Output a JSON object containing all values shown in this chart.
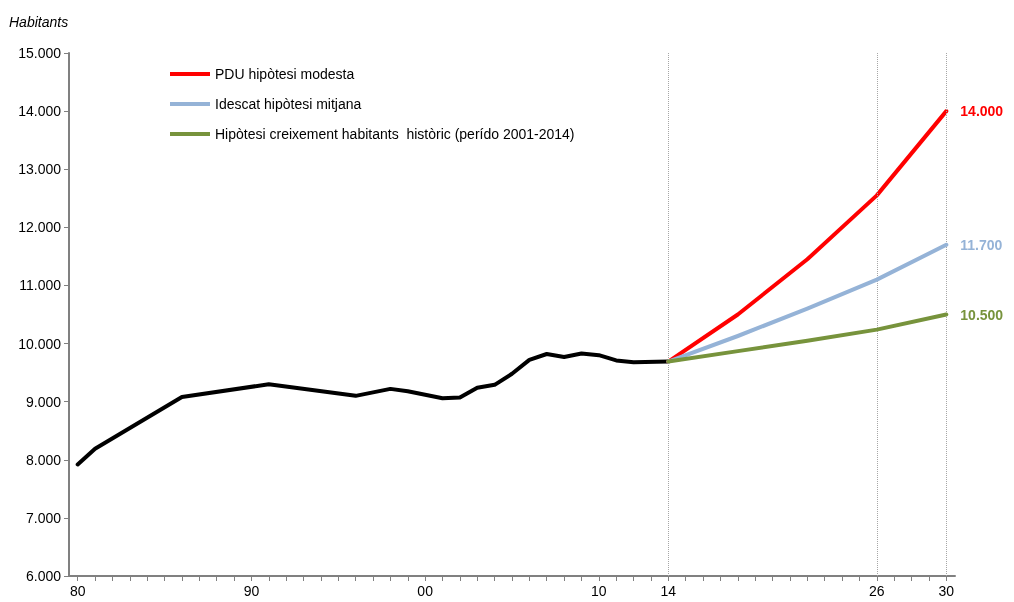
{
  "chart_data": {
    "type": "line",
    "ylabel": "Habitants",
    "xlim": [
      1979.5,
      2030.5
    ],
    "ylim": [
      6000,
      15000
    ],
    "yticks": [
      {
        "value": 6000,
        "label": "6.000"
      },
      {
        "value": 7000,
        "label": "7.000"
      },
      {
        "value": 8000,
        "label": "8.000"
      },
      {
        "value": 9000,
        "label": "9.000"
      },
      {
        "value": 10000,
        "label": "10.000"
      },
      {
        "value": 11000,
        "label": "11.000"
      },
      {
        "value": 12000,
        "label": "12.000"
      },
      {
        "value": 13000,
        "label": "13.000"
      },
      {
        "value": 14000,
        "label": "14.000"
      },
      {
        "value": 15000,
        "label": "15.000"
      }
    ],
    "xticks": [
      {
        "value": 1980,
        "label": "80"
      },
      {
        "value": 1981,
        "label": null
      },
      {
        "value": 1982,
        "label": null
      },
      {
        "value": 1983,
        "label": null
      },
      {
        "value": 1984,
        "label": null
      },
      {
        "value": 1985,
        "label": null
      },
      {
        "value": 1986,
        "label": null
      },
      {
        "value": 1987,
        "label": null
      },
      {
        "value": 1988,
        "label": null
      },
      {
        "value": 1989,
        "label": null
      },
      {
        "value": 1990,
        "label": "90"
      },
      {
        "value": 1991,
        "label": null
      },
      {
        "value": 1992,
        "label": null
      },
      {
        "value": 1993,
        "label": null
      },
      {
        "value": 1994,
        "label": null
      },
      {
        "value": 1995,
        "label": null
      },
      {
        "value": 1996,
        "label": null
      },
      {
        "value": 1997,
        "label": null
      },
      {
        "value": 1998,
        "label": null
      },
      {
        "value": 1999,
        "label": null
      },
      {
        "value": 2000,
        "label": "00"
      },
      {
        "value": 2001,
        "label": null
      },
      {
        "value": 2002,
        "label": null
      },
      {
        "value": 2003,
        "label": null
      },
      {
        "value": 2004,
        "label": null
      },
      {
        "value": 2005,
        "label": null
      },
      {
        "value": 2006,
        "label": null
      },
      {
        "value": 2007,
        "label": null
      },
      {
        "value": 2008,
        "label": null
      },
      {
        "value": 2009,
        "label": null
      },
      {
        "value": 2010,
        "label": "10"
      },
      {
        "value": 2011,
        "label": null
      },
      {
        "value": 2012,
        "label": null
      },
      {
        "value": 2013,
        "label": null
      },
      {
        "value": 2014,
        "label": "14"
      },
      {
        "value": 2015,
        "label": null
      },
      {
        "value": 2016,
        "label": null
      },
      {
        "value": 2017,
        "label": null
      },
      {
        "value": 2018,
        "label": null
      },
      {
        "value": 2019,
        "label": null
      },
      {
        "value": 2020,
        "label": null
      },
      {
        "value": 2021,
        "label": null
      },
      {
        "value": 2022,
        "label": null
      },
      {
        "value": 2023,
        "label": null
      },
      {
        "value": 2024,
        "label": null
      },
      {
        "value": 2025,
        "label": null
      },
      {
        "value": 2026,
        "label": "26"
      },
      {
        "value": 2027,
        "label": null
      },
      {
        "value": 2028,
        "label": null
      },
      {
        "value": 2029,
        "label": null
      },
      {
        "value": 2030,
        "label": "30"
      }
    ],
    "series": [
      {
        "color": "#000000",
        "x": [
          1980,
          1981,
          1986,
          1991,
          1996,
          1998,
          1999,
          2001,
          2002,
          2003,
          2004,
          2005,
          2006,
          2007,
          2008,
          2009,
          2010,
          2011,
          2012,
          2014
        ],
        "values": [
          7920,
          8190,
          9080,
          9300,
          9100,
          9220,
          9180,
          9060,
          9070,
          9240,
          9290,
          9480,
          9720,
          9820,
          9770,
          9830,
          9800,
          9710,
          9680,
          9690
        ]
      },
      {
        "name": "PDU hipòtesi modesta",
        "color": "#ff0000",
        "x": [
          2014,
          2018,
          2022,
          2026,
          2030
        ],
        "values": [
          9690,
          10500,
          11450,
          12550,
          14000
        ],
        "value_labels": [
          null,
          null,
          null,
          null,
          "14.000"
        ]
      },
      {
        "name": "Idescat hipòtesi mitjana",
        "color": "#95b3d7",
        "x": [
          2014,
          2018,
          2022,
          2026,
          2030
        ],
        "values": [
          9690,
          10130,
          10600,
          11100,
          11700
        ],
        "value_labels": [
          null,
          null,
          null,
          null,
          "11.700"
        ]
      },
      {
        "name": "Hipòtesi creixement habitants  històric (perído 2001-2014)",
        "color": "#77933c",
        "x": [
          2014,
          2018,
          2022,
          2026,
          2030
        ],
        "values": [
          9690,
          9870,
          10050,
          10240,
          10500
        ],
        "value_labels": [
          null,
          null,
          null,
          null,
          "10.500"
        ]
      }
    ],
    "ref_lines": [
      {
        "axis": "x",
        "value": 2014,
        "color": "#a6a6a6",
        "line_style": "dotted"
      },
      {
        "axis": "x",
        "value": 2026,
        "color": "#a6a6a6",
        "line_style": "dotted"
      },
      {
        "axis": "x",
        "value": 2030,
        "color": "#a6a6a6",
        "line_style": "dotted"
      }
    ],
    "legend": "top left",
    "grid": false,
    "marker": "none",
    "line_style": "solid"
  }
}
